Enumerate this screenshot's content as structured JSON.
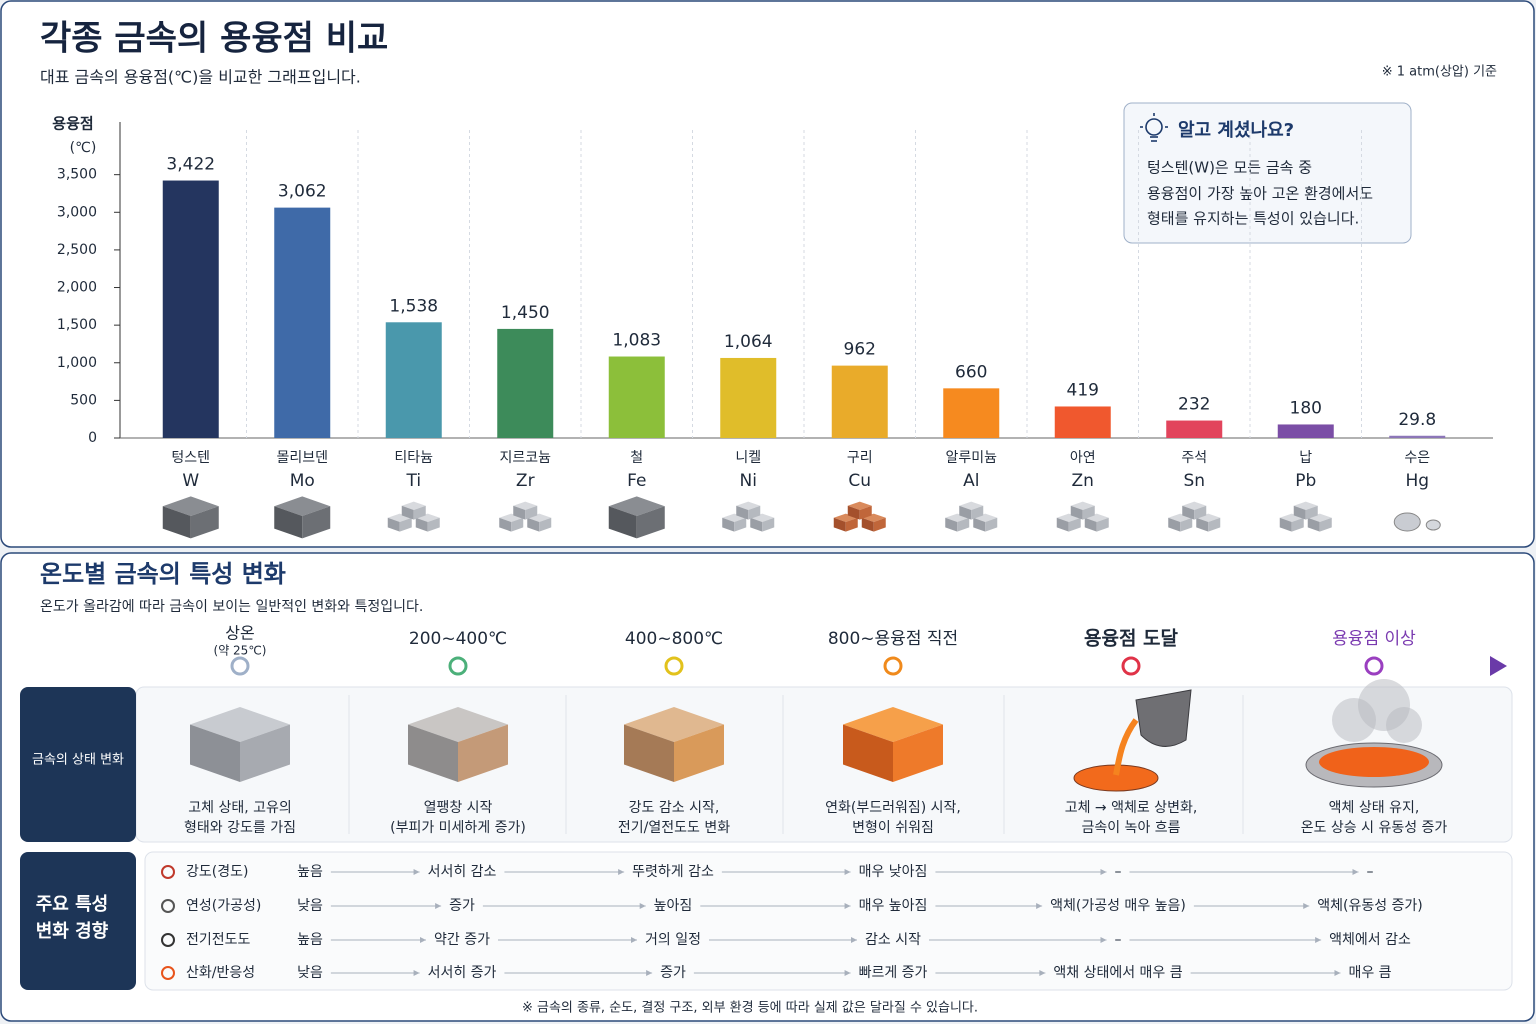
{
  "chart_data": {
    "type": "bar",
    "title": "각종 금속의 용융점 비교",
    "subtitle": "대표 금속의 용융점(℃)을 비교한 그래프입니다.",
    "note": "※ 1 atm(상압) 기준",
    "ylabel": "용융점",
    "yunit": "(℃)",
    "categories": [
      "텅스텐",
      "몰리브덴",
      "티타늄",
      "지르코늄",
      "철",
      "니켈",
      "구리",
      "알루미늄",
      "아연",
      "주석",
      "납",
      "수은"
    ],
    "symbols": [
      "W",
      "Mo",
      "Ti",
      "Zr",
      "Fe",
      "Ni",
      "Cu",
      "Al",
      "Zn",
      "Sn",
      "Pb",
      "Hg"
    ],
    "values": [
      3422,
      3062,
      1538,
      1450,
      1083,
      1064,
      962,
      660,
      419,
      232,
      180,
      29.8
    ],
    "value_labels": [
      "3,422",
      "3,062",
      "1,538",
      "1,450",
      "1,083",
      "1,064",
      "962",
      "660",
      "419",
      "232",
      "180",
      "29.8"
    ],
    "colors": [
      "#24355f",
      "#3f6aa8",
      "#4a98ac",
      "#3d8b5a",
      "#8cbf3a",
      "#e0bd2a",
      "#e9ab2a",
      "#f68a1f",
      "#f0582e",
      "#e2445c",
      "#7b4ea6",
      "#8c76b8"
    ],
    "ylim": [
      0,
      4200
    ],
    "yticks": [
      0,
      500,
      {
        "value": 1000,
        "label": "1,000"
      },
      {
        "value": 1500,
        "label": "1,500"
      },
      {
        "value": 2000,
        "label": "2,000"
      },
      {
        "value": 2500,
        "label": "2,500"
      },
      {
        "value": 3000,
        "label": "3,000"
      },
      {
        "value": 3500,
        "label": "3,500"
      }
    ]
  },
  "tip": {
    "title": "알고 계셨나요?",
    "lines": [
      "텅스텐(W)은 모든 금속 중",
      "용융점이 가장 높아 고온 환경에서도",
      "형태를 유지하는 특성이 있습니다."
    ]
  },
  "section2": {
    "title": "온도별 금속의 특성 변화",
    "subtitle": "온도가 올라감에 따라 금속이 보이는 일반적인 변화와 특정입니다.",
    "stages": [
      {
        "label": "상온",
        "sublabel": "(약 25℃)",
        "description": [
          "고체 상태, 고유의",
          "형태와 강도를 가짐"
        ]
      },
      {
        "label": "200~400℃",
        "description": [
          "열팽창 시작",
          "(부피가 미세하게 증가)"
        ]
      },
      {
        "label": "400~800℃",
        "description": [
          "강도 감소 시작,",
          "전기/열전도도 변화"
        ]
      },
      {
        "label": "800~용융점 직전",
        "description": [
          "연화(부드러워짐) 시작,",
          "변형이 쉬워짐"
        ]
      },
      {
        "label": "용융점 도달",
        "description": [
          "고체 → 액체로 상변화,",
          "금속이 녹아 흐름"
        ]
      },
      {
        "label": "용융점 이상",
        "description": [
          "액체 상태 유지,",
          "온도 상승 시 유동성 증가"
        ]
      }
    ],
    "state_header": "금속의 상태 변화",
    "property_header": [
      "주요 특성",
      "변화 경향"
    ],
    "properties": [
      {
        "name": "강도(경도)",
        "values": [
          "높음",
          "서서히 감소",
          "뚜렷하게 감소",
          "매우 낮아짐",
          "–",
          "–"
        ]
      },
      {
        "name": "연성(가공성)",
        "values": [
          "낮음",
          "증가",
          "높아짐",
          "매우 높아짐",
          "액체(가공성 매우 높음)",
          "액체(유동성 증가)"
        ]
      },
      {
        "name": "전기전도도",
        "values": [
          "높음",
          "약간 증가",
          "거의 일정",
          "감소 시작",
          "–",
          "액체에서 감소"
        ]
      },
      {
        "name": "산화/반응성",
        "values": [
          "낮음",
          "서서히 증가",
          "증가",
          "빠르게 증가",
          "액채 상태에서 매우 큼",
          "매우 큼"
        ]
      }
    ],
    "footnote": "※ 금속의 종류, 순도, 결정 구조, 외부 환경 등에 따라 실제 값은 달라질 수 있습니다."
  }
}
